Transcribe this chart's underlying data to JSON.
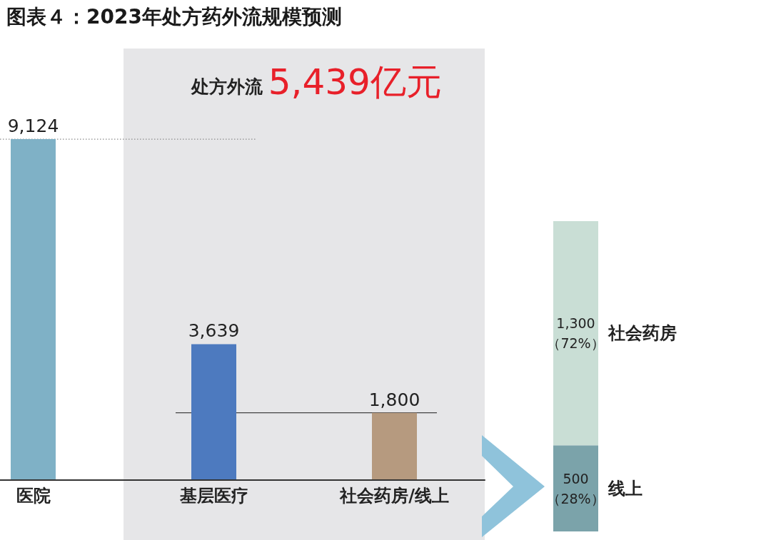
{
  "chart_data": [
    {
      "type": "bar",
      "title": "图表４：2023年处方药外流规模预测",
      "categories": [
        "医院",
        "基层医疗",
        "社会药房/线上"
      ],
      "values": [
        9124,
        3639,
        1800
      ],
      "colors": [
        "#7fb1c6",
        "#4d7abf",
        "#b69a7f"
      ],
      "value_labels": [
        "9,124",
        "3,639",
        "1,800"
      ],
      "annotations": [
        "处方外流",
        "5,439亿元"
      ],
      "ref_lines": [
        {
          "axis": "y",
          "value": 9124,
          "color": "#8c8c8c",
          "line_style": "dotted"
        },
        {
          "axis": "y",
          "value": 1800,
          "color": "#444444",
          "line_style": "solid"
        }
      ],
      "bands": [
        {
          "axis": "x",
          "from": "基层医疗",
          "to": "社会药房/线上",
          "color": "#e6e6e8"
        }
      ]
    },
    {
      "type": "bar",
      "categories": [
        null
      ],
      "stacked": true,
      "series": [
        {
          "name": "线上",
          "color": "#7ba3aa",
          "values": [
            500
          ],
          "value_labels": [
            "500\n（28%）"
          ]
        },
        {
          "name": "社会药房",
          "color": "#c9ded5",
          "values": [
            1300
          ],
          "value_labels": [
            "1,300\n（72%）"
          ]
        }
      ]
    }
  ]
}
